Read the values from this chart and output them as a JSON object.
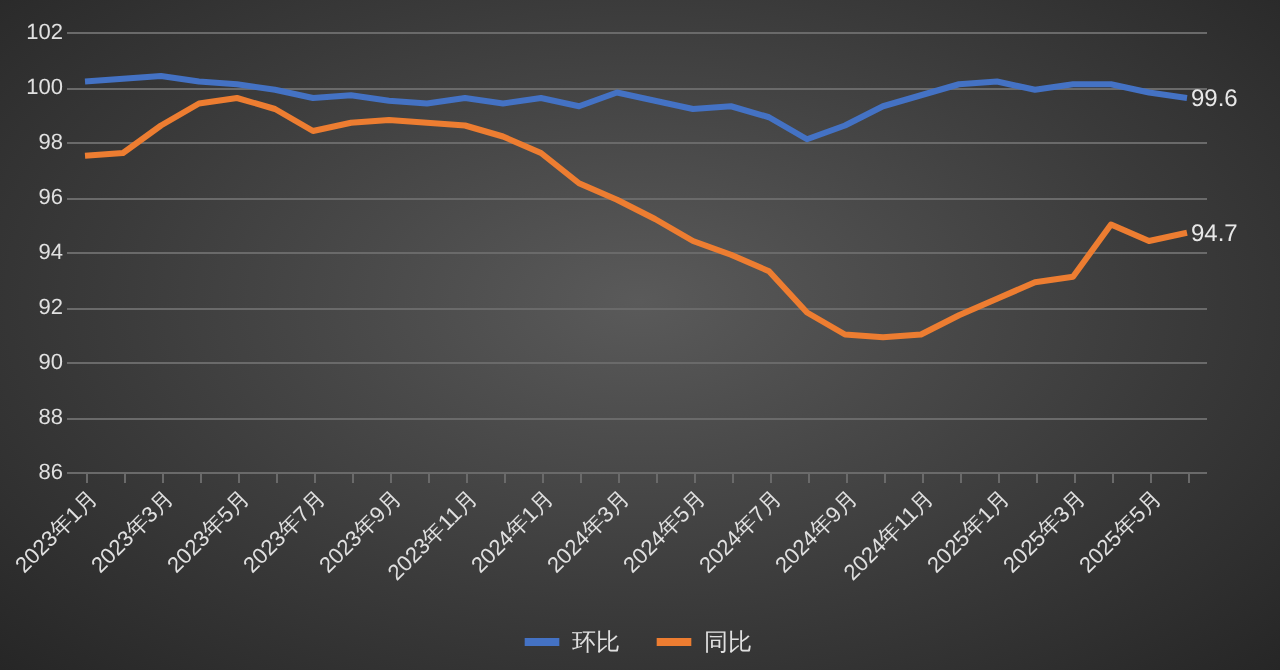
{
  "chart_data": {
    "type": "line",
    "categories": [
      "2023年1月",
      null,
      "2023年3月",
      null,
      "2023年5月",
      null,
      "2023年7月",
      null,
      "2023年9月",
      null,
      "2023年11月",
      null,
      "2024年1月",
      null,
      "2024年3月",
      null,
      "2024年5月",
      null,
      "2024年7月",
      null,
      "2024年9月",
      null,
      "2024年11月",
      null,
      "2025年1月",
      null,
      "2025年3月",
      null,
      "2025年5月",
      null
    ],
    "series": [
      {
        "name": "环比",
        "color": "#4472c4",
        "values": [
          100.2,
          100.3,
          100.4,
          100.2,
          100.1,
          99.9,
          99.6,
          99.7,
          99.5,
          99.4,
          99.6,
          99.4,
          99.6,
          99.3,
          99.8,
          99.5,
          99.2,
          99.3,
          98.9,
          98.1,
          98.6,
          99.3,
          99.7,
          100.1,
          100.2,
          99.9,
          100.1,
          100.1,
          99.8,
          99.6
        ],
        "value_labels": [
          null,
          null,
          null,
          null,
          null,
          null,
          null,
          null,
          null,
          null,
          null,
          null,
          null,
          null,
          null,
          null,
          null,
          null,
          null,
          null,
          null,
          null,
          null,
          null,
          null,
          null,
          null,
          null,
          null,
          "99.6"
        ]
      },
      {
        "name": "同比",
        "color": "#ed7d31",
        "values": [
          97.5,
          97.6,
          98.6,
          99.4,
          99.6,
          99.2,
          98.4,
          98.7,
          98.8,
          98.7,
          98.6,
          98.2,
          97.6,
          96.5,
          95.9,
          95.2,
          94.4,
          93.9,
          93.3,
          91.8,
          91.0,
          90.9,
          91.0,
          91.7,
          92.3,
          92.9,
          93.1,
          95.0,
          94.4,
          94.7
        ],
        "value_labels": [
          null,
          null,
          null,
          null,
          null,
          null,
          null,
          null,
          null,
          null,
          null,
          null,
          null,
          null,
          null,
          null,
          null,
          null,
          null,
          null,
          null,
          null,
          null,
          null,
          null,
          null,
          null,
          null,
          null,
          "94.7"
        ]
      }
    ],
    "ylim": [
      86,
      102
    ],
    "yticks": [
      86,
      88,
      90,
      92,
      94,
      96,
      98,
      100,
      102
    ],
    "grid": "y",
    "legend": "bottom",
    "marker": "none",
    "line_style": "solid"
  }
}
